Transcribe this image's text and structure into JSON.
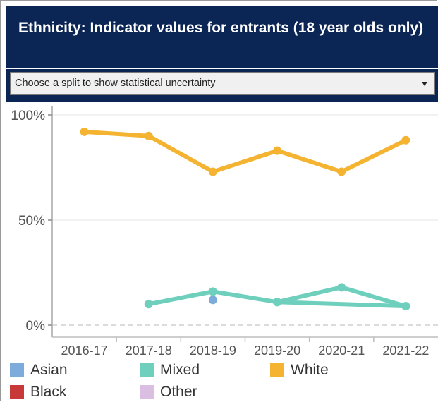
{
  "header": {
    "title": "Ethnicity: Indicator values for entrants (18 year olds only)"
  },
  "selector": {
    "value": "Choose a split to show statistical uncertainty"
  },
  "legend": {
    "items": [
      {
        "name": "Asian",
        "color": "#7dabdb"
      },
      {
        "name": "Mixed",
        "color": "#6fcfbd"
      },
      {
        "name": "White",
        "color": "#f4b431"
      },
      {
        "name": "Black",
        "color": "#c83a3a"
      },
      {
        "name": "Other",
        "color": "#dbbfe3"
      }
    ]
  },
  "chart_data": {
    "type": "line",
    "categories": [
      "2016-17",
      "2017-18",
      "2018-19",
      "2019-20",
      "2020-21",
      "2021-22"
    ],
    "y_tick_labels": [
      "0%",
      "50%",
      "100%"
    ],
    "y_ticks": [
      0,
      50,
      100
    ],
    "ylim": [
      0,
      100
    ],
    "grid": true,
    "legend_position": "bottom",
    "series": [
      {
        "name": "White",
        "color": "#f4b431",
        "values": [
          92,
          90,
          73,
          83,
          73,
          88
        ]
      },
      {
        "name": "Mixed",
        "color": "#6fcfbd",
        "values": [
          null,
          10,
          16,
          11,
          null,
          9
        ]
      },
      {
        "name": "Mixed",
        "color": "#6fcfbd",
        "values": [
          null,
          null,
          null,
          11,
          18,
          9
        ]
      },
      {
        "name": "Asian",
        "color": "#7dabdb",
        "values": [
          null,
          null,
          12,
          null,
          null,
          null
        ]
      }
    ]
  }
}
